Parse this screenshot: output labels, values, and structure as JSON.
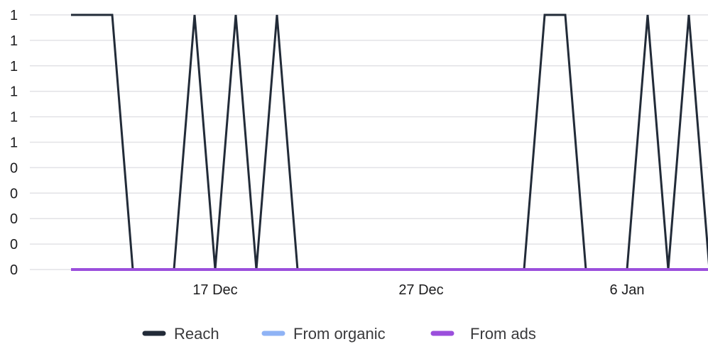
{
  "chart_data": {
    "type": "line",
    "x_axis": {
      "type": "date",
      "start": "2023-12-10",
      "end": "2024-01-10",
      "tick_labels": [
        "17 Dec",
        "27 Dec",
        "6 Jan"
      ],
      "tick_dates": [
        "2023-12-17",
        "2023-12-27",
        "2024-01-06"
      ]
    },
    "y_axis": {
      "range": [
        0,
        1
      ],
      "tick_labels": [
        "1",
        "1",
        "1",
        "1",
        "1",
        "1",
        "0",
        "0",
        "0",
        "0",
        "0"
      ],
      "tick_values": [
        1.0,
        0.9,
        0.8,
        0.7,
        0.6,
        0.5,
        0.4,
        0.3,
        0.2,
        0.1,
        0.0
      ]
    },
    "grid": true,
    "legend_position": "bottom-center",
    "x": [
      "2023-12-10",
      "2023-12-11",
      "2023-12-12",
      "2023-12-13",
      "2023-12-14",
      "2023-12-15",
      "2023-12-16",
      "2023-12-17",
      "2023-12-18",
      "2023-12-19",
      "2023-12-20",
      "2023-12-21",
      "2023-12-22",
      "2023-12-23",
      "2023-12-24",
      "2023-12-25",
      "2023-12-26",
      "2023-12-27",
      "2023-12-28",
      "2023-12-29",
      "2023-12-30",
      "2023-12-31",
      "2024-01-01",
      "2024-01-02",
      "2024-01-03",
      "2024-01-04",
      "2024-01-05",
      "2024-01-06",
      "2024-01-07",
      "2024-01-08",
      "2024-01-09",
      "2024-01-10"
    ],
    "series": [
      {
        "name": "Reach",
        "color": "#222b38",
        "values": [
          1,
          1,
          1,
          0,
          0,
          0,
          1,
          0,
          1,
          0,
          1,
          0,
          0,
          0,
          0,
          0,
          0,
          0,
          0,
          0,
          0,
          0,
          0,
          1,
          1,
          0,
          0,
          0,
          1,
          0,
          1,
          0
        ]
      },
      {
        "name": "From organic",
        "color": "#8fb3f5",
        "values": [
          0,
          0,
          0,
          0,
          0,
          0,
          0,
          0,
          0,
          0,
          0,
          0,
          0,
          0,
          0,
          0,
          0,
          0,
          0,
          0,
          0,
          0,
          0,
          0,
          0,
          0,
          0,
          0,
          0,
          0,
          0,
          0
        ]
      },
      {
        "name": "From ads",
        "color": "#9b4fdc",
        "values": [
          0,
          0,
          0,
          0,
          0,
          0,
          0,
          0,
          0,
          0,
          0,
          0,
          0,
          0,
          0,
          0,
          0,
          0,
          0,
          0,
          0,
          0,
          0,
          0,
          0,
          0,
          0,
          0,
          0,
          0,
          0,
          0
        ]
      }
    ]
  }
}
